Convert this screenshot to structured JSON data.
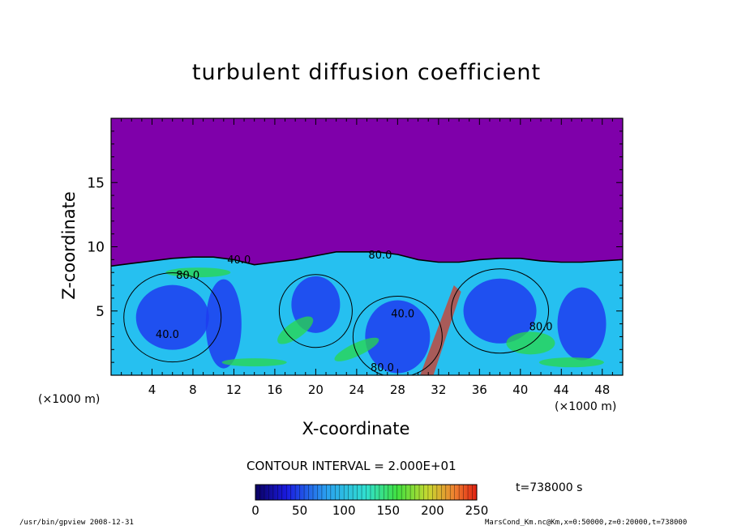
{
  "chart_data": {
    "type": "heatmap",
    "title": "turbulent diffusion coefficient",
    "xlabel": "X-coordinate",
    "ylabel": "Z-coordinate",
    "x_unit_left": "(×1000 m)",
    "x_unit_right": "(×1000 m)",
    "xlim": [
      0,
      50
    ],
    "ylim": [
      0,
      20
    ],
    "x_ticks": [
      "4",
      "8",
      "12",
      "16",
      "20",
      "24",
      "28",
      "32",
      "36",
      "40",
      "44",
      "48"
    ],
    "x_tick_values": [
      4,
      8,
      12,
      16,
      20,
      24,
      28,
      32,
      36,
      40,
      44,
      48
    ],
    "y_ticks": [
      "5",
      "10",
      "15"
    ],
    "y_tick_values": [
      5,
      10,
      15
    ],
    "contour_interval": "CONTOUR INTERVAL = 2.000E+01",
    "contour_labels": [
      "80.0",
      "40.0",
      "80.0",
      "40.0",
      "40.0",
      "80.0",
      "80.0"
    ],
    "contour_label_pos": [
      [
        7.5,
        7.5
      ],
      [
        12.5,
        8.7
      ],
      [
        26.3,
        9.1
      ],
      [
        28.5,
        4.5
      ],
      [
        5.5,
        2.9
      ],
      [
        26.5,
        0.3
      ],
      [
        42.0,
        3.5
      ]
    ],
    "colorbar": {
      "min": 0,
      "max": 250,
      "tick_labels": [
        "0",
        "50",
        "100",
        "150",
        "200",
        "250"
      ],
      "tick_values": [
        0,
        50,
        100,
        150,
        200,
        250
      ]
    },
    "boundary_layer_top": [
      [
        0,
        8.5
      ],
      [
        2,
        8.7
      ],
      [
        4,
        8.9
      ],
      [
        6,
        9.1
      ],
      [
        8,
        9.2
      ],
      [
        10,
        9.2
      ],
      [
        12,
        9.0
      ],
      [
        14,
        8.6
      ],
      [
        16,
        8.8
      ],
      [
        18,
        9.0
      ],
      [
        20,
        9.3
      ],
      [
        22,
        9.6
      ],
      [
        24,
        9.6
      ],
      [
        26,
        9.6
      ],
      [
        28,
        9.4
      ],
      [
        30,
        9.0
      ],
      [
        32,
        8.8
      ],
      [
        34,
        8.8
      ],
      [
        36,
        9.0
      ],
      [
        38,
        9.1
      ],
      [
        40,
        9.1
      ],
      [
        42,
        8.9
      ],
      [
        44,
        8.8
      ],
      [
        46,
        8.8
      ],
      [
        48,
        8.9
      ],
      [
        50,
        9.0
      ]
    ],
    "colors": {
      "background_value": "#7f00aa",
      "low": "#1f3cf0",
      "mid": "#26c0f0",
      "high": "#2ad84a",
      "peak": "#e03018"
    }
  },
  "time_label": "t=738000 s",
  "footer_left": "/usr/bin/gpview   2008-12-31",
  "footer_right": "MarsCond_Km.nc@Km,x=0:50000,z=0:20000,t=738000"
}
